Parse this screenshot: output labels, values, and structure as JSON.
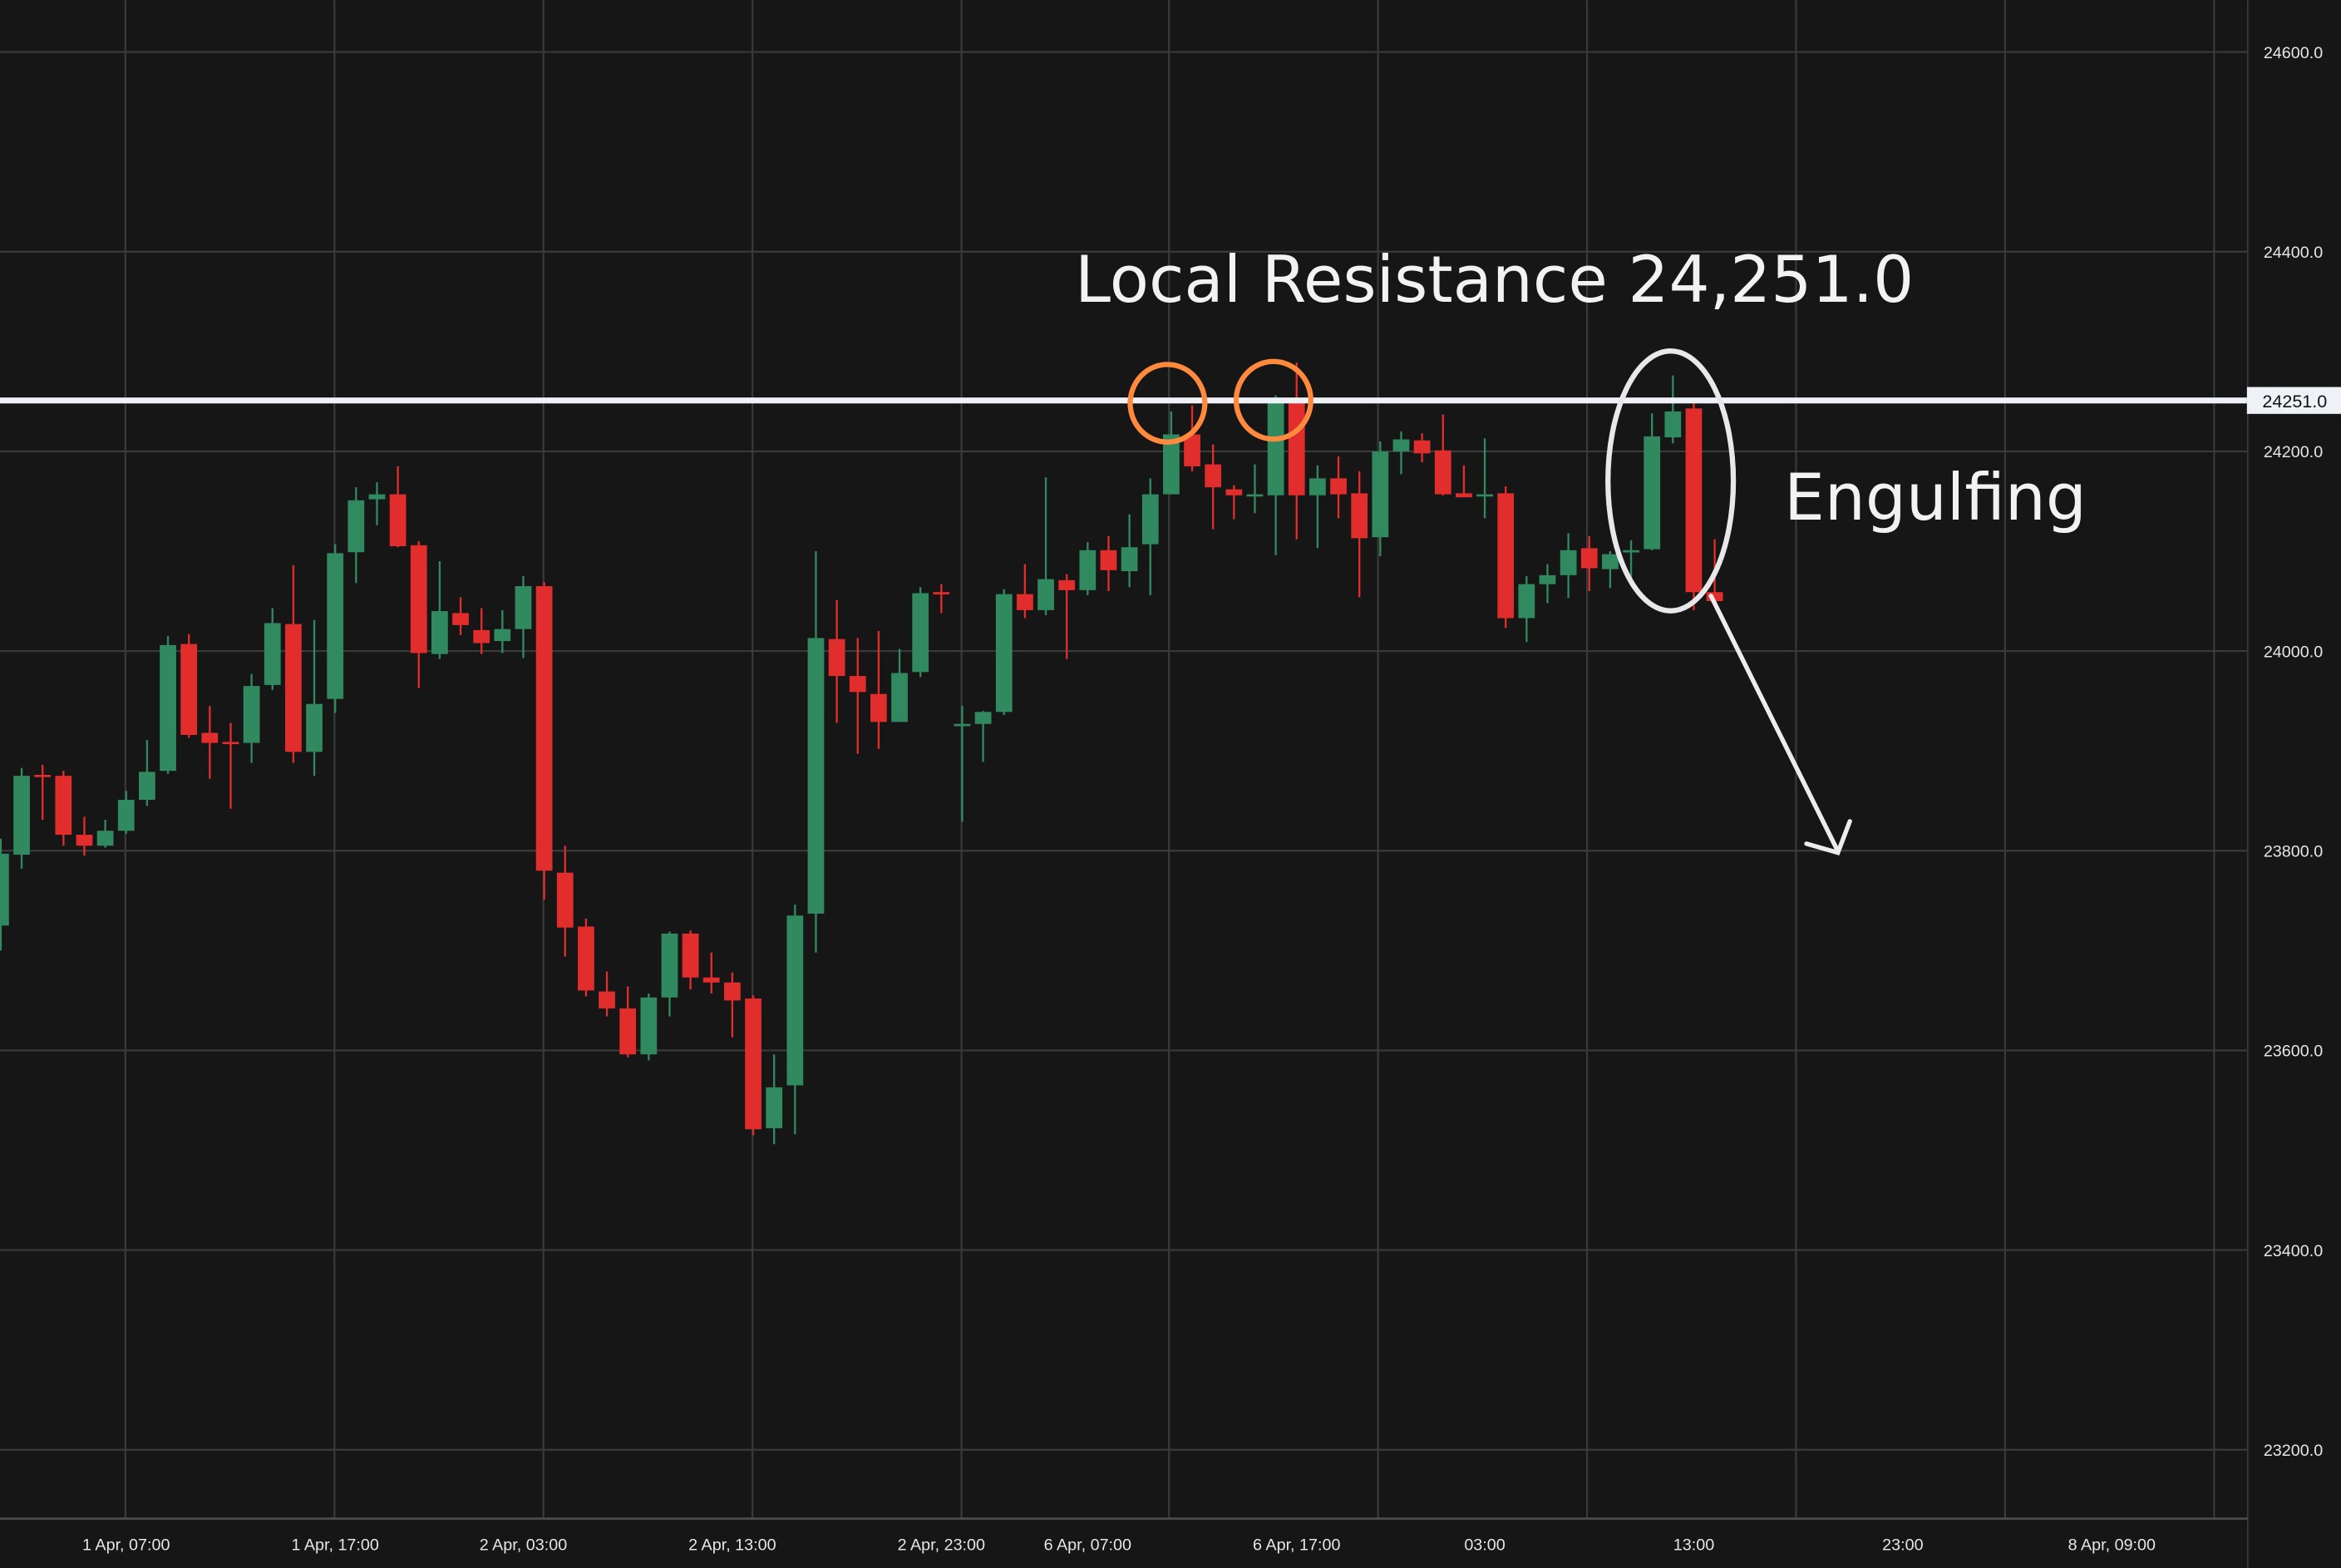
{
  "chart_data": {
    "type": "candlestick",
    "title": "",
    "xlabel": "",
    "ylabel": "",
    "ylim": [
      23131,
      24652
    ],
    "grid": true,
    "colors": {
      "background": "#161616",
      "grid": "#3a3a3a",
      "up": "#318a5f",
      "down": "#e22d2d",
      "resistance": "#eef2f7",
      "highlight": "#ff8a3d",
      "annotation": "#e8e8ea"
    },
    "y_ticks": [
      "24600.0",
      "24400.0",
      "24200.0",
      "24000.0",
      "23800.0",
      "23600.0",
      "23400.0",
      "23200.0"
    ],
    "y_tick_values": [
      24600,
      24400,
      24200,
      24000,
      23800,
      23600,
      23400,
      23200
    ],
    "x_ticks": [
      {
        "label": "1 Apr, 07:00",
        "candle": 6
      },
      {
        "label": "1 Apr, 17:00",
        "candle": 16
      },
      {
        "label": "2 Apr, 03:00",
        "candle": 25
      },
      {
        "label": "2 Apr, 13:00",
        "candle": 35
      },
      {
        "label": "2 Apr, 23:00",
        "candle": 45
      },
      {
        "label": "6 Apr, 07:00",
        "candle": 52
      },
      {
        "label": "6 Apr, 17:00",
        "candle": 62
      },
      {
        "label": "03:00",
        "candle": 71
      },
      {
        "label": "13:00",
        "candle": 81
      },
      {
        "label": "23:00",
        "candle": 91
      },
      {
        "label": "8 Apr, 09:00",
        "candle": 101
      }
    ],
    "candles": [
      [
        23725,
        23812,
        23700,
        23797
      ],
      [
        23796,
        23883,
        23782,
        23875
      ],
      [
        23876,
        23886,
        23831,
        23874
      ],
      [
        23875,
        23880,
        23805,
        23816
      ],
      [
        23816,
        23834,
        23795,
        23805
      ],
      [
        23805,
        23831,
        23803,
        23820
      ],
      [
        23820,
        23860,
        23817,
        23851
      ],
      [
        23851,
        23911,
        23845,
        23879
      ],
      [
        23880,
        24015,
        23877,
        24006
      ],
      [
        24007,
        24017,
        23913,
        23916
      ],
      [
        23918,
        23945,
        23872,
        23908
      ],
      [
        23909,
        23928,
        23842,
        23908
      ],
      [
        23908,
        23977,
        23888,
        23965
      ],
      [
        23966,
        24043,
        23961,
        24028
      ],
      [
        24027,
        24086,
        23888,
        23899
      ],
      [
        23899,
        24031,
        23875,
        23947
      ],
      [
        23952,
        24107,
        23938,
        24098
      ],
      [
        24099,
        24164,
        24068,
        24151
      ],
      [
        24152,
        24169,
        24126,
        24157
      ],
      [
        24157,
        24185,
        24104,
        24105
      ],
      [
        24106,
        24110,
        23963,
        23998
      ],
      [
        23997,
        24090,
        23992,
        24040
      ],
      [
        24038,
        24054,
        24016,
        24026
      ],
      [
        24021,
        24043,
        23997,
        24008
      ],
      [
        24010,
        24041,
        23998,
        24022
      ],
      [
        24022,
        24075,
        23993,
        24065
      ],
      [
        24065,
        24069,
        23751,
        23780
      ],
      [
        23778,
        23805,
        23694,
        23723
      ],
      [
        23724,
        23732,
        23654,
        23660
      ],
      [
        23659,
        23679,
        23634,
        23642
      ],
      [
        23642,
        23664,
        23593,
        23596
      ],
      [
        23596,
        23657,
        23590,
        23653
      ],
      [
        23653,
        23719,
        23634,
        23717
      ],
      [
        23717,
        23720,
        23661,
        23673
      ],
      [
        23673,
        23698,
        23657,
        23668
      ],
      [
        23668,
        23678,
        23613,
        23650
      ],
      [
        23652,
        23655,
        23515,
        23521
      ],
      [
        23522,
        23596,
        23506,
        23563
      ],
      [
        23565,
        23746,
        23516,
        23735
      ],
      [
        23737,
        24100,
        23698,
        24013
      ],
      [
        24012,
        24051,
        23928,
        23975
      ],
      [
        23975,
        24013,
        23897,
        23959
      ],
      [
        23957,
        24020,
        23902,
        23929
      ],
      [
        23929,
        24002,
        23929,
        23978
      ],
      [
        23979,
        24064,
        23974,
        24058
      ],
      [
        24059,
        24067,
        24038,
        24057
      ],
      [
        23926,
        23945,
        23829,
        23927
      ],
      [
        23927,
        23940,
        23889,
        23939
      ],
      [
        23939,
        24062,
        23936,
        24057
      ],
      [
        24057,
        24087,
        24033,
        24041
      ],
      [
        24041,
        24174,
        24036,
        24072
      ],
      [
        24071,
        24077,
        23992,
        24061
      ],
      [
        24061,
        24109,
        24056,
        24101
      ],
      [
        24101,
        24115,
        24060,
        24081
      ],
      [
        24080,
        24137,
        24064,
        24104
      ],
      [
        24107,
        24173,
        24056,
        24157
      ],
      [
        24157,
        24240,
        24157,
        24217
      ],
      [
        24217,
        24246,
        24180,
        24185
      ],
      [
        24187,
        24207,
        24122,
        24164
      ],
      [
        24162,
        24166,
        24132,
        24156
      ],
      [
        24156,
        24187,
        24138,
        24157
      ],
      [
        24156,
        24256,
        24096,
        24251
      ],
      [
        24250,
        24289,
        24112,
        24156
      ],
      [
        24156,
        24186,
        24103,
        24173
      ],
      [
        24173,
        24195,
        24133,
        24157
      ],
      [
        24158,
        24180,
        24054,
        24113
      ],
      [
        24114,
        24210,
        24095,
        24200
      ],
      [
        24200,
        24220,
        24177,
        24212
      ],
      [
        24211,
        24218,
        24189,
        24198
      ],
      [
        24201,
        24237,
        24156,
        24157
      ],
      [
        24158,
        24186,
        24154,
        24154
      ],
      [
        24156,
        24213,
        24133,
        24157
      ],
      [
        24158,
        24165,
        24023,
        24033
      ],
      [
        24033,
        24075,
        24009,
        24067
      ],
      [
        24067,
        24087,
        24048,
        24076
      ],
      [
        24076,
        24118,
        24053,
        24101
      ],
      [
        24103,
        24115,
        24060,
        24083
      ],
      [
        24082,
        24100,
        24063,
        24097
      ],
      [
        24100,
        24111,
        24065,
        24101
      ],
      [
        24102,
        24238,
        24101,
        24215
      ],
      [
        24214,
        24276,
        24208,
        24240
      ],
      [
        24243,
        24248,
        24041,
        24059
      ],
      [
        24059,
        24112,
        24050,
        24050
      ]
    ],
    "candle_fields": [
      "open",
      "high",
      "low",
      "close"
    ],
    "resistance": {
      "value": 24251.0,
      "axis_label": "24251.0"
    },
    "highlighted_candles": [
      56,
      61
    ],
    "engulfing_candles": [
      79,
      81
    ],
    "annotations": {
      "resistance_text": "Local Resistance 24,251.0",
      "pattern_text": "Engulfing",
      "arrow_direction": "down"
    }
  }
}
